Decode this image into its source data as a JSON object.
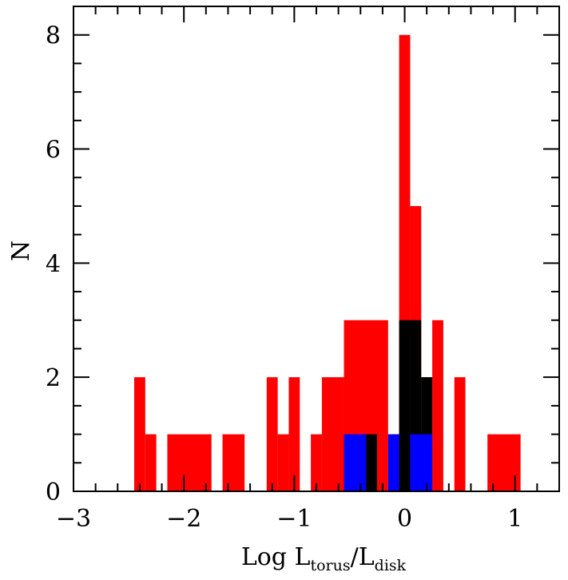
{
  "chart_data": {
    "type": "bar",
    "xlabel": {
      "main": "Log  L",
      "sub1": "torus",
      "mid": "/L",
      "sub2": "disk"
    },
    "ylabel": "N",
    "xlim": [
      -3,
      1.4
    ],
    "ylim": [
      0,
      8.5
    ],
    "x_ticks": [
      {
        "value": -3,
        "label": "−3"
      },
      {
        "value": -2,
        "label": "−2"
      },
      {
        "value": -1,
        "label": "−1"
      },
      {
        "value": 0,
        "label": "0"
      },
      {
        "value": 1,
        "label": "1"
      }
    ],
    "y_ticks": [
      {
        "value": 0,
        "label": "0"
      },
      {
        "value": 2,
        "label": "2"
      },
      {
        "value": 4,
        "label": "4"
      },
      {
        "value": 6,
        "label": "6"
      },
      {
        "value": 8,
        "label": "8"
      }
    ],
    "bin_width": 0.1,
    "series": [
      {
        "color": "#ff0000",
        "bars": [
          {
            "x0": -2.45,
            "x1": -2.35,
            "y": 2
          },
          {
            "x0": -2.35,
            "x1": -2.25,
            "y": 1
          },
          {
            "x0": -2.15,
            "x1": -1.75,
            "y": 1
          },
          {
            "x0": -1.65,
            "x1": -1.45,
            "y": 1
          },
          {
            "x0": -1.25,
            "x1": -1.15,
            "y": 2
          },
          {
            "x0": -1.15,
            "x1": -1.05,
            "y": 1
          },
          {
            "x0": -1.05,
            "x1": -0.95,
            "y": 2
          },
          {
            "x0": -0.85,
            "x1": -0.75,
            "y": 1
          },
          {
            "x0": -0.75,
            "x1": -0.55,
            "y": 2
          },
          {
            "x0": -0.55,
            "x1": -0.15,
            "y": 3
          },
          {
            "x0": -0.15,
            "x1": -0.05,
            "y": 1
          },
          {
            "x0": -0.05,
            "x1": 0.05,
            "y": 8
          },
          {
            "x0": 0.05,
            "x1": 0.15,
            "y": 5
          },
          {
            "x0": 0.15,
            "x1": 0.25,
            "y": 2
          },
          {
            "x0": 0.25,
            "x1": 0.35,
            "y": 3
          },
          {
            "x0": 0.45,
            "x1": 0.55,
            "y": 2
          },
          {
            "x0": 0.75,
            "x1": 1.05,
            "y": 1
          }
        ]
      },
      {
        "color": "#000000",
        "bars": [
          {
            "x0": -0.35,
            "x1": -0.25,
            "y": 1
          },
          {
            "x0": -0.05,
            "x1": 0.05,
            "y": 3
          },
          {
            "x0": 0.05,
            "x1": 0.15,
            "y": 3
          },
          {
            "x0": 0.15,
            "x1": 0.25,
            "y": 2
          }
        ]
      },
      {
        "color": "#0000ff",
        "bars": [
          {
            "x0": -0.55,
            "x1": -0.35,
            "y": 1
          },
          {
            "x0": -0.15,
            "x1": -0.05,
            "y": 1
          },
          {
            "x0": 0.05,
            "x1": 0.25,
            "y": 1
          }
        ]
      }
    ]
  }
}
